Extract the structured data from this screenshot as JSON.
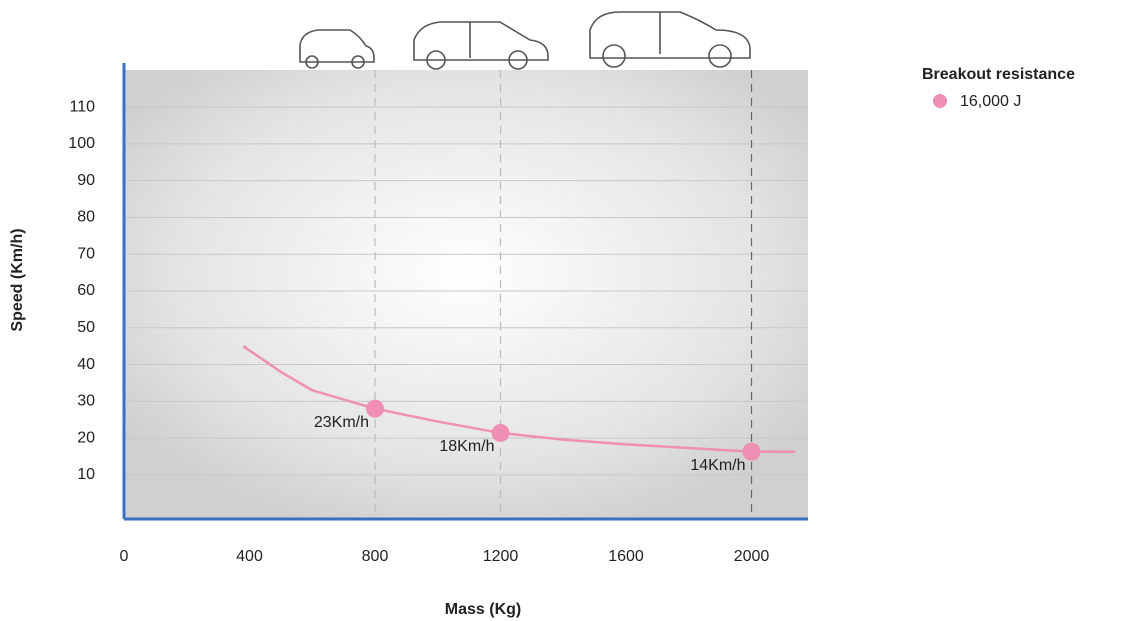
{
  "chart_data": {
    "type": "line",
    "xlabel": "Mass (Kg)",
    "ylabel": "Speed (Km/h)",
    "legend_title": "Breakout resistance",
    "series": [
      {
        "name": "16,000 J",
        "color": "#ef8fb3",
        "x": [
          380,
          500,
          600,
          800,
          1000,
          1200,
          1400,
          1600,
          1800,
          2000,
          2140
        ],
        "values": [
          45,
          38,
          33,
          28,
          24.5,
          21.4,
          19.6,
          18.3,
          17.3,
          16.3,
          16.3
        ]
      }
    ],
    "markers": {
      "x": [
        800,
        1200,
        2000
      ],
      "values": [
        28,
        21.4,
        16.3
      ]
    },
    "annotations": [
      "23Km/h",
      "18Km/h",
      "14Km/h"
    ],
    "xlim": [
      0,
      2180
    ],
    "xticks": [
      0,
      400,
      800,
      1200,
      1600,
      2000
    ],
    "ylim": [
      -2,
      122
    ],
    "yticks": [
      10,
      20,
      30,
      40,
      50,
      60,
      70,
      80,
      90,
      100,
      110
    ],
    "grid": true,
    "axis_color": "#3a6fc4"
  }
}
